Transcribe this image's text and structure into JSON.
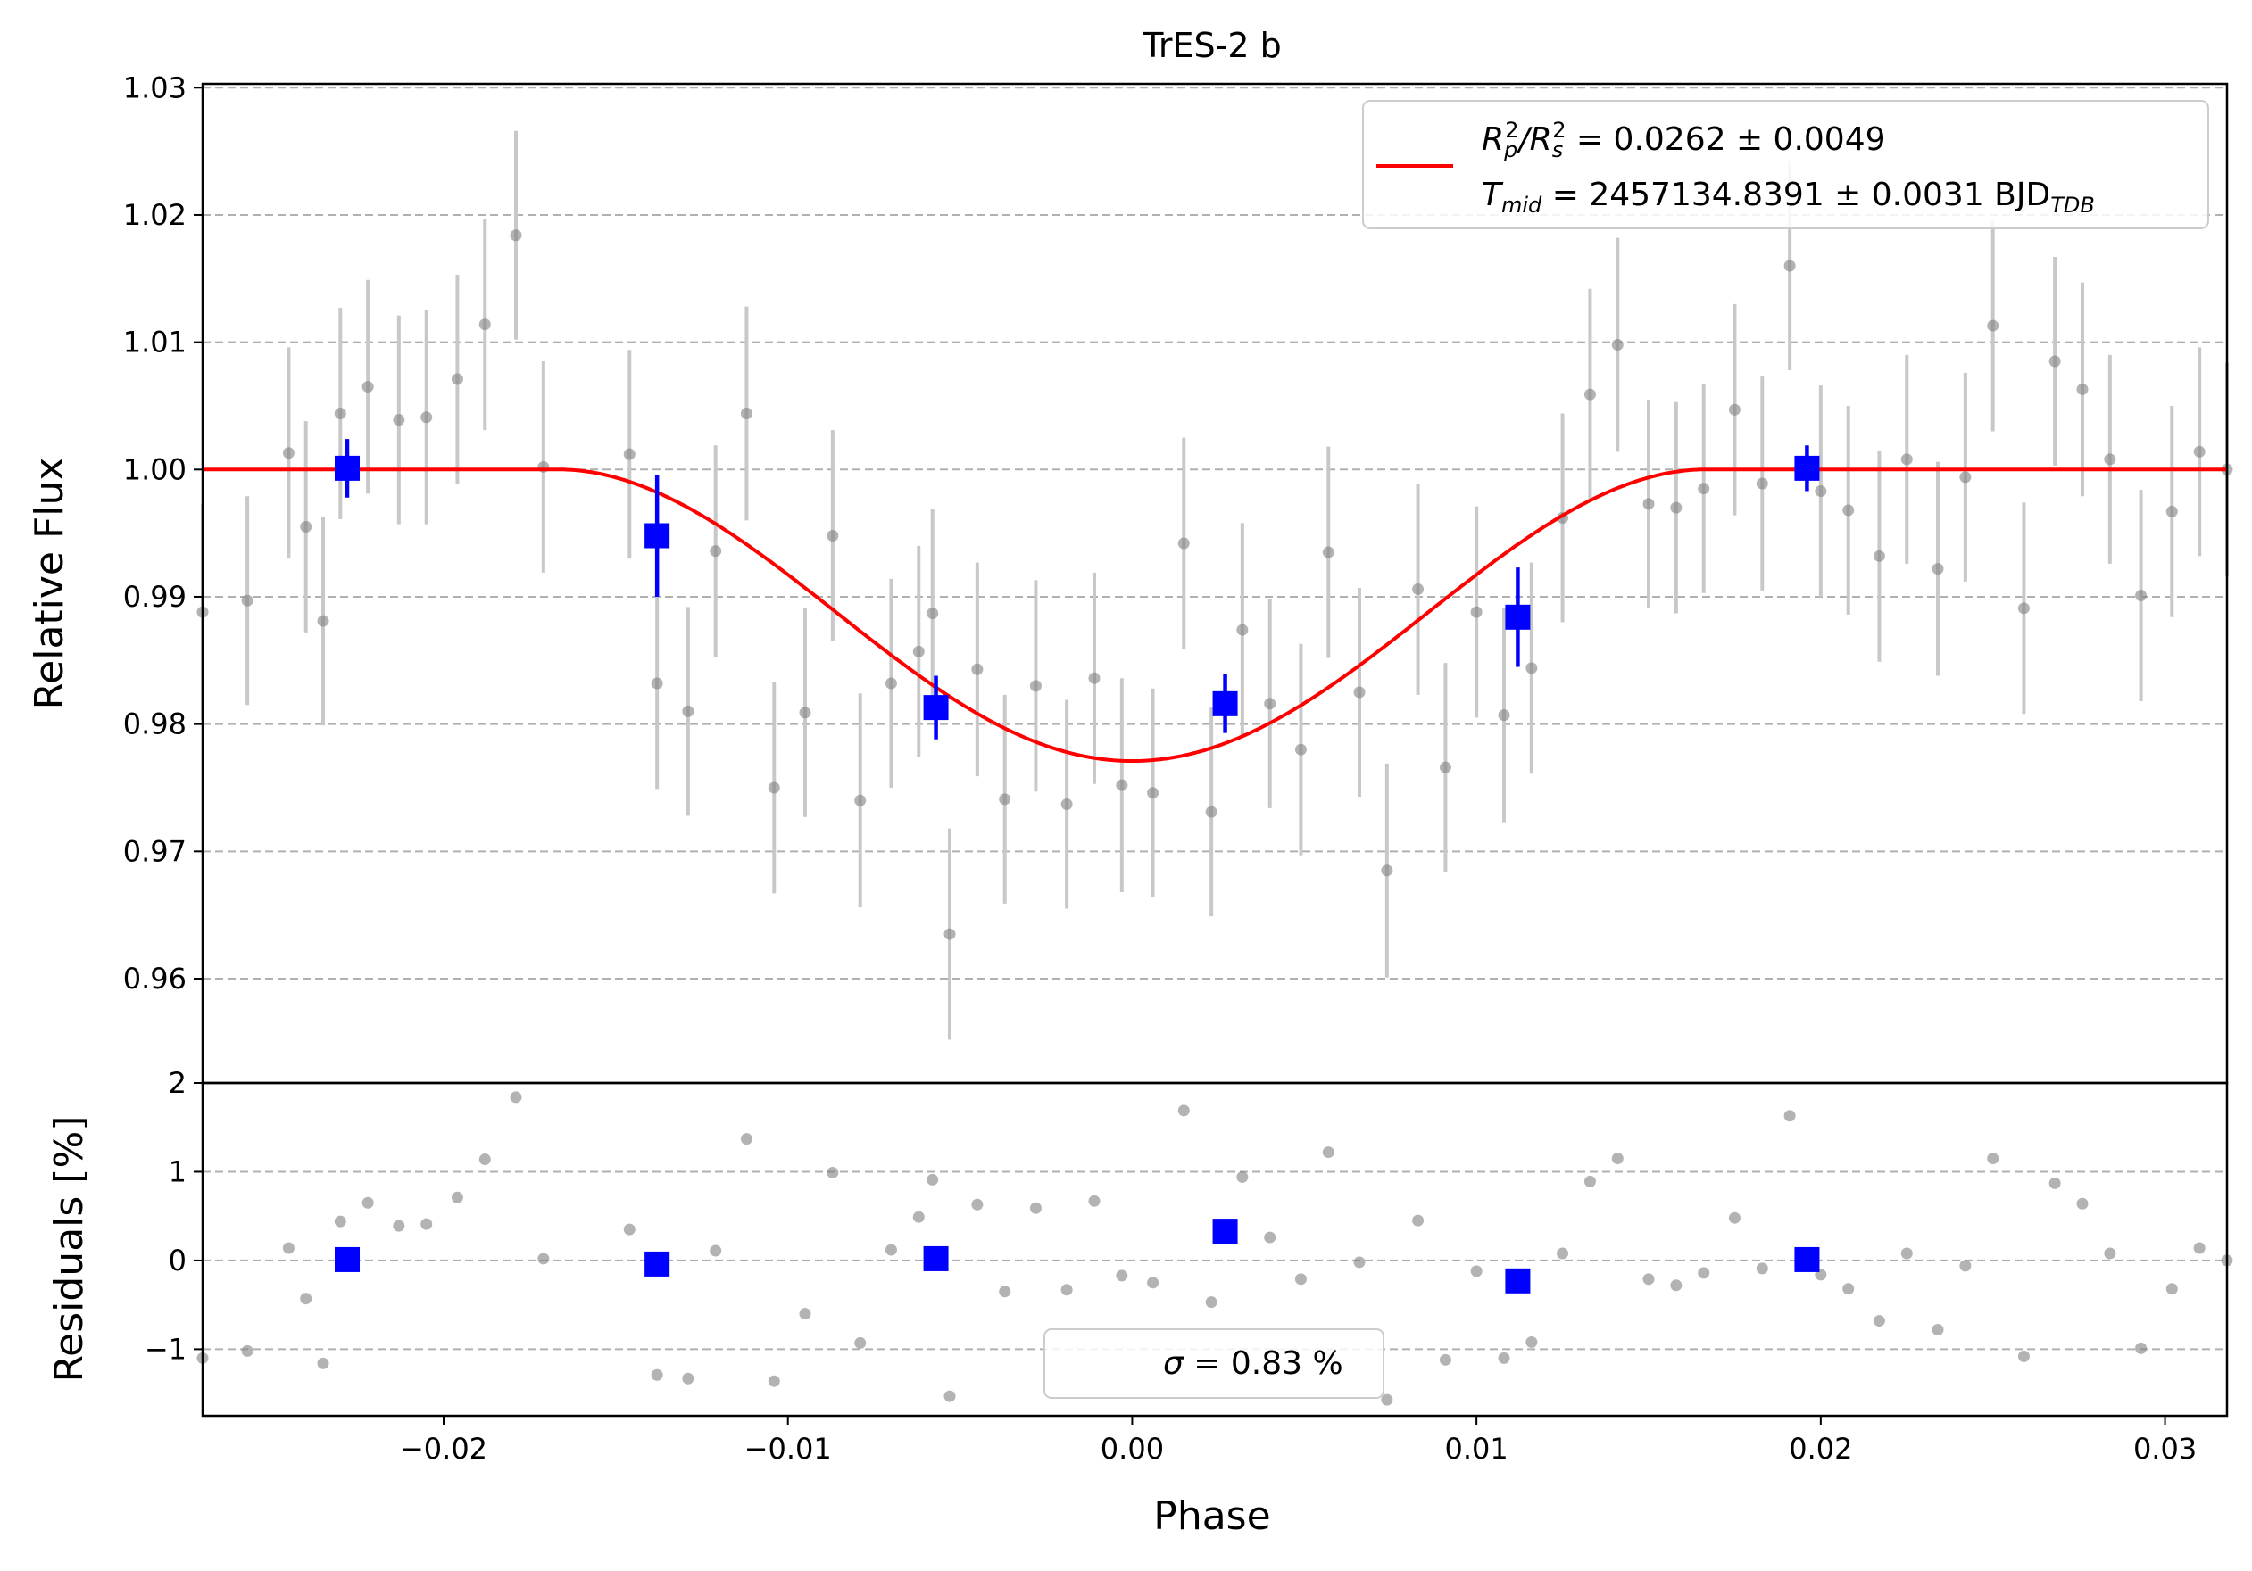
{
  "chart_data": {
    "type": "scatter",
    "title": "TrES-2 b",
    "xlabel": "Phase",
    "xlim": [
      -0.027,
      0.0318
    ],
    "xticks": [
      -0.02,
      -0.01,
      0.0,
      0.01,
      0.02,
      0.03
    ],
    "xtick_labels": [
      "−0.02",
      "−0.01",
      "0.00",
      "0.01",
      "0.02",
      "0.03"
    ],
    "grid": "horizontal dashed",
    "colors": {
      "raw": "#808080",
      "errorbar": "#c8c8c8",
      "binned": "#0000ff",
      "model": "#ff0000"
    },
    "flux_panel": {
      "ylabel": "Relative Flux",
      "ylim": [
        0.9518,
        1.0303
      ],
      "yticks": [
        0.96,
        0.97,
        0.98,
        0.99,
        1.0,
        1.01,
        1.02,
        1.03
      ],
      "ytick_labels": [
        "0.96",
        "0.97",
        "0.98",
        "0.99",
        "1.00",
        "1.01",
        "1.02",
        "1.03"
      ],
      "legend": {
        "placement": "upper right",
        "line1_pre": "R",
        "line1_p": "p",
        "line1_p_exp": "2",
        "line1_slash": "/R",
        "line1_s": "s",
        "line1_s_exp": "2",
        "line1_value": " = 0.0262 ± 0.0049",
        "line2_pre": "T",
        "line2_sub": "mid",
        "line2_value": " = 2457134.8391 ± 0.0031 BJD",
        "line2_unit_sub": "TDB"
      },
      "model": {
        "name": "transit model",
        "baseline": 1.0,
        "depth_min": 0.9771,
        "t14_half": 0.0166
      },
      "raw": {
        "x": [
          -0.027,
          -0.0257,
          -0.0245,
          -0.024,
          -0.0235,
          -0.023,
          -0.0222,
          -0.0213,
          -0.0205,
          -0.0196,
          -0.0188,
          -0.0179,
          -0.0171,
          -0.0146,
          -0.0138,
          -0.0129,
          -0.0121,
          -0.0112,
          -0.0104,
          -0.0095,
          -0.0087,
          -0.0079,
          -0.007,
          -0.0062,
          -0.0058,
          -0.0053,
          -0.0045,
          -0.0037,
          -0.0028,
          -0.0019,
          -0.0011,
          -0.0003,
          0.0006,
          0.0015,
          0.0023,
          0.0032,
          0.004,
          0.0049,
          0.0057,
          0.0066,
          0.0074,
          0.0083,
          0.0091,
          0.01,
          0.0108,
          0.0116,
          0.0125,
          0.0133,
          0.0141,
          0.015,
          0.0158,
          0.0166,
          0.0175,
          0.0183,
          0.0191,
          0.02,
          0.0208,
          0.0217,
          0.0225,
          0.0234,
          0.0242,
          0.025,
          0.0259,
          0.0268,
          0.0276,
          0.0284,
          0.0293,
          0.0302,
          0.031,
          0.0318
        ],
        "y": [
          0.9888,
          0.9897,
          1.0013,
          0.9955,
          0.9881,
          1.0044,
          1.0065,
          1.0039,
          1.0041,
          1.0071,
          1.0114,
          1.0184,
          1.0002,
          1.0012,
          0.9832,
          0.981,
          0.9936,
          1.0044,
          0.975,
          0.9809,
          0.9948,
          0.974,
          0.9832,
          0.9857,
          0.9887,
          0.9635,
          0.9843,
          0.9741,
          0.983,
          0.9737,
          0.9836,
          0.9752,
          0.9746,
          0.9942,
          0.9731,
          0.9874,
          0.9816,
          0.978,
          0.9935,
          0.9825,
          0.9685,
          0.9906,
          0.9766,
          0.9888,
          0.9807,
          0.9844,
          0.9962,
          1.0059,
          1.0098,
          0.9973,
          0.997,
          0.9985,
          1.0047,
          0.9989,
          1.016,
          0.9983,
          0.9968,
          0.9932,
          1.0008,
          0.9922,
          0.9994,
          1.0113,
          0.9891,
          1.0085,
          1.0063,
          1.0008,
          0.9901,
          0.9967,
          1.0014,
          1.0
        ],
        "yerr": [
          0.0085,
          0.0082,
          0.0083,
          0.0083,
          0.0082,
          0.0083,
          0.0084,
          0.0082,
          0.0084,
          0.0082,
          0.0083,
          0.0082,
          0.0083,
          0.0082,
          0.0083,
          0.0082,
          0.0083,
          0.0084,
          0.0083,
          0.0082,
          0.0083,
          0.0084,
          0.0082,
          0.0083,
          0.0082,
          0.0083,
          0.0084,
          0.0082,
          0.0083,
          0.0082,
          0.0083,
          0.0084,
          0.0082,
          0.0083,
          0.0082,
          0.0084,
          0.0082,
          0.0083,
          0.0083,
          0.0082,
          0.0084,
          0.0083,
          0.0082,
          0.0083,
          0.0084,
          0.0083,
          0.0082,
          0.0083,
          0.0084,
          0.0082,
          0.0083,
          0.0082,
          0.0083,
          0.0084,
          0.0082,
          0.0083,
          0.0082,
          0.0083,
          0.0082,
          0.0084,
          0.0082,
          0.0083,
          0.0083,
          0.0082,
          0.0084,
          0.0082,
          0.0083,
          0.0083,
          0.0082,
          0.0084
        ]
      },
      "binned": {
        "x": [
          -0.0228,
          -0.0138,
          -0.0057,
          0.0027,
          0.0112,
          0.0196
        ],
        "y": [
          1.0001,
          0.9948,
          0.9813,
          0.9816,
          0.9884,
          1.0001
        ],
        "yerr": [
          0.0023,
          0.0048,
          0.0025,
          0.0023,
          0.0039,
          0.0018
        ]
      }
    },
    "residual_panel": {
      "ylabel": "Residuals [%]",
      "ylim": [
        -1.75,
        2.0
      ],
      "yticks": [
        -1,
        0,
        1,
        2
      ],
      "ytick_labels": [
        "−1",
        "0",
        "1",
        "2"
      ],
      "legend": {
        "placement": "lower center",
        "text_pre": "σ",
        "text_value": " = 0.83 %"
      },
      "raw": {
        "x": [
          -0.027,
          -0.0257,
          -0.0245,
          -0.024,
          -0.0235,
          -0.023,
          -0.0222,
          -0.0213,
          -0.0205,
          -0.0196,
          -0.0188,
          -0.0179,
          -0.0171,
          -0.0146,
          -0.0138,
          -0.0129,
          -0.0121,
          -0.0112,
          -0.0104,
          -0.0095,
          -0.0087,
          -0.0079,
          -0.007,
          -0.0062,
          -0.0058,
          -0.0053,
          -0.0045,
          -0.0037,
          -0.0028,
          -0.0019,
          -0.0011,
          -0.0003,
          0.0006,
          0.0015,
          0.0023,
          0.0032,
          0.004,
          0.0049,
          0.0057,
          0.0066,
          0.0074,
          0.0083,
          0.0091,
          0.01,
          0.0108,
          0.0116,
          0.0125,
          0.0133,
          0.0141,
          0.015,
          0.0158,
          0.0166,
          0.0175,
          0.0183,
          0.0191,
          0.02,
          0.0208,
          0.0217,
          0.0225,
          0.0234,
          0.0242,
          0.025,
          0.0259,
          0.0268,
          0.0276,
          0.0284,
          0.0293,
          0.0302,
          0.031,
          0.0318
        ],
        "y": [
          -1.1,
          -1.02,
          0.14,
          -0.43,
          -1.16,
          0.44,
          0.65,
          0.39,
          0.41,
          0.71,
          1.14,
          1.84,
          0.02,
          0.35,
          -1.29,
          -1.33,
          0.11,
          1.37,
          -1.36,
          -0.6,
          0.99,
          -0.93,
          0.12,
          0.49,
          0.91,
          -1.53,
          0.63,
          -0.35,
          0.59,
          -0.33,
          0.67,
          -0.17,
          -0.25,
          1.69,
          -0.47,
          0.94,
          0.26,
          -0.21,
          1.22,
          -0.02,
          -1.57,
          0.45,
          -1.12,
          -0.12,
          -1.1,
          -0.92,
          0.08,
          0.89,
          1.15,
          -0.21,
          -0.28,
          -0.14,
          0.48,
          -0.09,
          1.63,
          -0.16,
          -0.32,
          -0.68,
          0.08,
          -0.78,
          -0.06,
          1.15,
          -1.08,
          0.87,
          0.64,
          0.08,
          -0.99,
          -0.32,
          0.14,
          0.0
        ]
      },
      "binned": {
        "x": [
          -0.0228,
          -0.0138,
          -0.0057,
          0.0027,
          0.0112,
          0.0196
        ],
        "y": [
          0.01,
          -0.04,
          0.02,
          0.33,
          -0.23,
          0.01
        ]
      }
    }
  }
}
